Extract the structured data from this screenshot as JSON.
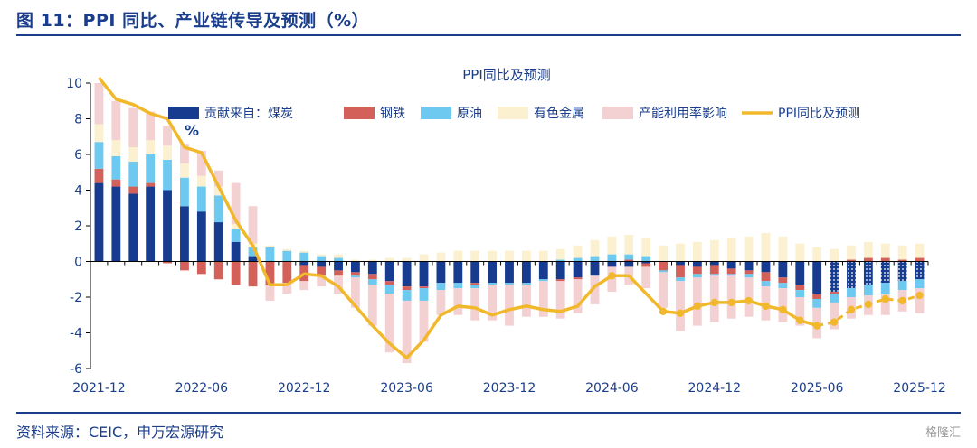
{
  "header": {
    "title": "图 11：PPI 同比、产业链传导及预测（%）"
  },
  "footer": {
    "source": "资料来源：CEIC，申万宏源研究",
    "watermark": "格隆汇"
  },
  "colors": {
    "coal": "#163b8f",
    "steel": "#d4605a",
    "oil": "#6ec9f0",
    "nonferrous": "#fbf0cf",
    "capacity": "#f3d0d2",
    "ppi": "#f2b82c",
    "grid": "#000000"
  },
  "chart_data": {
    "type": "bar",
    "title": "PPI同比及预测",
    "unit_label": "%",
    "ylim": [
      -6,
      10
    ],
    "yticks": [
      -6,
      -4,
      -2,
      0,
      2,
      4,
      6,
      8,
      10
    ],
    "xtick_labels": [
      "2021-12",
      "2022-06",
      "2022-12",
      "2023-06",
      "2023-12",
      "2024-06",
      "2024-12",
      "2025-06",
      "2025-12"
    ],
    "xtick_positions": [
      "2021-12",
      "2022-06",
      "2022-12",
      "2023-06",
      "2023-12",
      "2024-06",
      "2024-12",
      "2025-06",
      "2025-12"
    ],
    "categories": [
      "2021-12",
      "2022-01",
      "2022-02",
      "2022-03",
      "2022-04",
      "2022-05",
      "2022-06",
      "2022-07",
      "2022-08",
      "2022-09",
      "2022-10",
      "2022-11",
      "2022-12",
      "2023-01",
      "2023-02",
      "2023-03",
      "2023-04",
      "2023-05",
      "2023-06",
      "2023-07",
      "2023-08",
      "2023-09",
      "2023-10",
      "2023-11",
      "2023-12",
      "2024-01",
      "2024-02",
      "2024-03",
      "2024-04",
      "2024-05",
      "2024-06",
      "2024-07",
      "2024-08",
      "2024-09",
      "2024-10",
      "2024-11",
      "2024-12",
      "2025-01",
      "2025-02",
      "2025-03",
      "2025-04",
      "2025-05",
      "2025-06",
      "2025-07",
      "2025-08",
      "2025-09",
      "2025-10",
      "2025-11",
      "2025-12"
    ],
    "forecast_start": "2025-07",
    "legend": [
      "贡献来自：煤炭",
      "钢铁",
      "原油",
      "有色金属",
      "产能利用率影响",
      "PPI同比及预测"
    ],
    "series": [
      {
        "name": "贡献来自：煤炭",
        "key": "coal",
        "values": [
          4.4,
          4.2,
          3.8,
          4.2,
          4.0,
          3.1,
          2.8,
          2.2,
          1.1,
          0.3,
          0,
          0,
          -0.2,
          -0.3,
          -0.5,
          -0.6,
          -0.7,
          -1.1,
          -1.4,
          -1.4,
          -1.2,
          -1.2,
          -1.2,
          -1.2,
          -1.2,
          -1.2,
          -1.0,
          -1.0,
          -0.9,
          -0.8,
          -0.3,
          -0.3,
          -0.1,
          0,
          -0.2,
          -0.3,
          -0.2,
          -0.4,
          -0.5,
          -0.6,
          -0.9,
          -1.3,
          -1.8,
          -1.7,
          -1.5,
          -1.3,
          -1.2,
          -1.1,
          -1.0
        ]
      },
      {
        "name": "钢铁",
        "key": "steel",
        "values": [
          0.8,
          0.4,
          0.4,
          0.2,
          -0.1,
          -0.5,
          -0.7,
          -1.0,
          -1.3,
          -1.4,
          -1.3,
          -1.2,
          -0.9,
          -0.5,
          -0.3,
          -0.2,
          -0.3,
          -0.2,
          -0.2,
          -0.1,
          0,
          0,
          -0.1,
          0,
          0,
          0,
          0,
          -0.1,
          -0.1,
          0,
          0,
          0.1,
          -0.2,
          -0.5,
          -0.7,
          -0.4,
          -0.5,
          -0.3,
          -0.2,
          -0.5,
          -0.3,
          -0.3,
          -0.3,
          -0.1,
          0.1,
          0.2,
          0.2,
          0.1,
          0.2
        ]
      },
      {
        "name": "原油",
        "key": "oil",
        "values": [
          1.5,
          1.3,
          1.4,
          1.6,
          1.7,
          1.6,
          1.4,
          1.5,
          0.7,
          0.5,
          0.8,
          0.6,
          0.5,
          0.3,
          0.2,
          -0.1,
          -0.3,
          -0.5,
          -0.6,
          -0.7,
          -0.4,
          -0.3,
          -0.2,
          -0.1,
          -0.1,
          -0.1,
          -0.1,
          0.1,
          0.2,
          0.3,
          0.4,
          0.3,
          0.3,
          -0.1,
          -0.2,
          -0.2,
          -0.1,
          -0.1,
          -0.2,
          -0.3,
          -0.3,
          -0.4,
          -0.5,
          -0.5,
          -0.5,
          -0.6,
          -0.6,
          -0.5,
          -0.5
        ]
      },
      {
        "name": "有色金属",
        "key": "nonferrous",
        "values": [
          1.0,
          0.9,
          0.8,
          0.8,
          0.8,
          0.8,
          0.6,
          0.5,
          0.3,
          0.2,
          0.1,
          0.1,
          0.1,
          0.1,
          0.2,
          0.1,
          0.1,
          0.2,
          0.2,
          0.4,
          0.5,
          0.6,
          0.6,
          0.6,
          0.6,
          0.6,
          0.6,
          0.6,
          0.7,
          0.9,
          1.0,
          1.1,
          1.0,
          0.9,
          1.0,
          1.1,
          1.2,
          1.3,
          1.4,
          1.6,
          1.4,
          1.0,
          0.8,
          0.7,
          0.8,
          0.9,
          0.8,
          0.8,
          0.8
        ]
      },
      {
        "name": "产能利用率影响",
        "key": "capacity",
        "values": [
          2.3,
          2.2,
          2.2,
          1.6,
          1.1,
          1.1,
          1.4,
          0.9,
          2.3,
          2.1,
          -0.9,
          -0.6,
          -0.5,
          -0.6,
          -1.0,
          -1.7,
          -2.3,
          -3.3,
          -3.5,
          -2.3,
          -1.4,
          -1.5,
          -1.8,
          -2.0,
          -2.3,
          -1.8,
          -2.0,
          -2.1,
          -1.9,
          -1.6,
          -1.4,
          -1.0,
          -1.2,
          -2.0,
          -2.8,
          -2.7,
          -2.6,
          -2.4,
          -2.2,
          -1.9,
          -1.9,
          -1.6,
          -1.7,
          -1.5,
          -1.2,
          -1.1,
          -1.2,
          -1.2,
          -1.4
        ]
      },
      {
        "name": "PPI同比及预测",
        "key": "ppi",
        "values": [
          10.3,
          9.1,
          8.8,
          8.3,
          8.0,
          6.4,
          6.1,
          4.2,
          2.3,
          0.9,
          -1.3,
          -1.3,
          -0.7,
          -0.8,
          -1.4,
          -2.5,
          -3.6,
          -4.6,
          -5.4,
          -4.4,
          -3.0,
          -2.5,
          -2.6,
          -3.0,
          -2.7,
          -2.5,
          -2.7,
          -2.8,
          -2.5,
          -1.4,
          -0.8,
          -0.8,
          -1.8,
          -2.8,
          -2.9,
          -2.5,
          -2.3,
          -2.3,
          -2.2,
          -2.5,
          -2.7,
          -3.3,
          -3.6,
          -3.4,
          -2.7,
          -2.4,
          -2.1,
          -2.2,
          -1.9
        ]
      }
    ]
  }
}
